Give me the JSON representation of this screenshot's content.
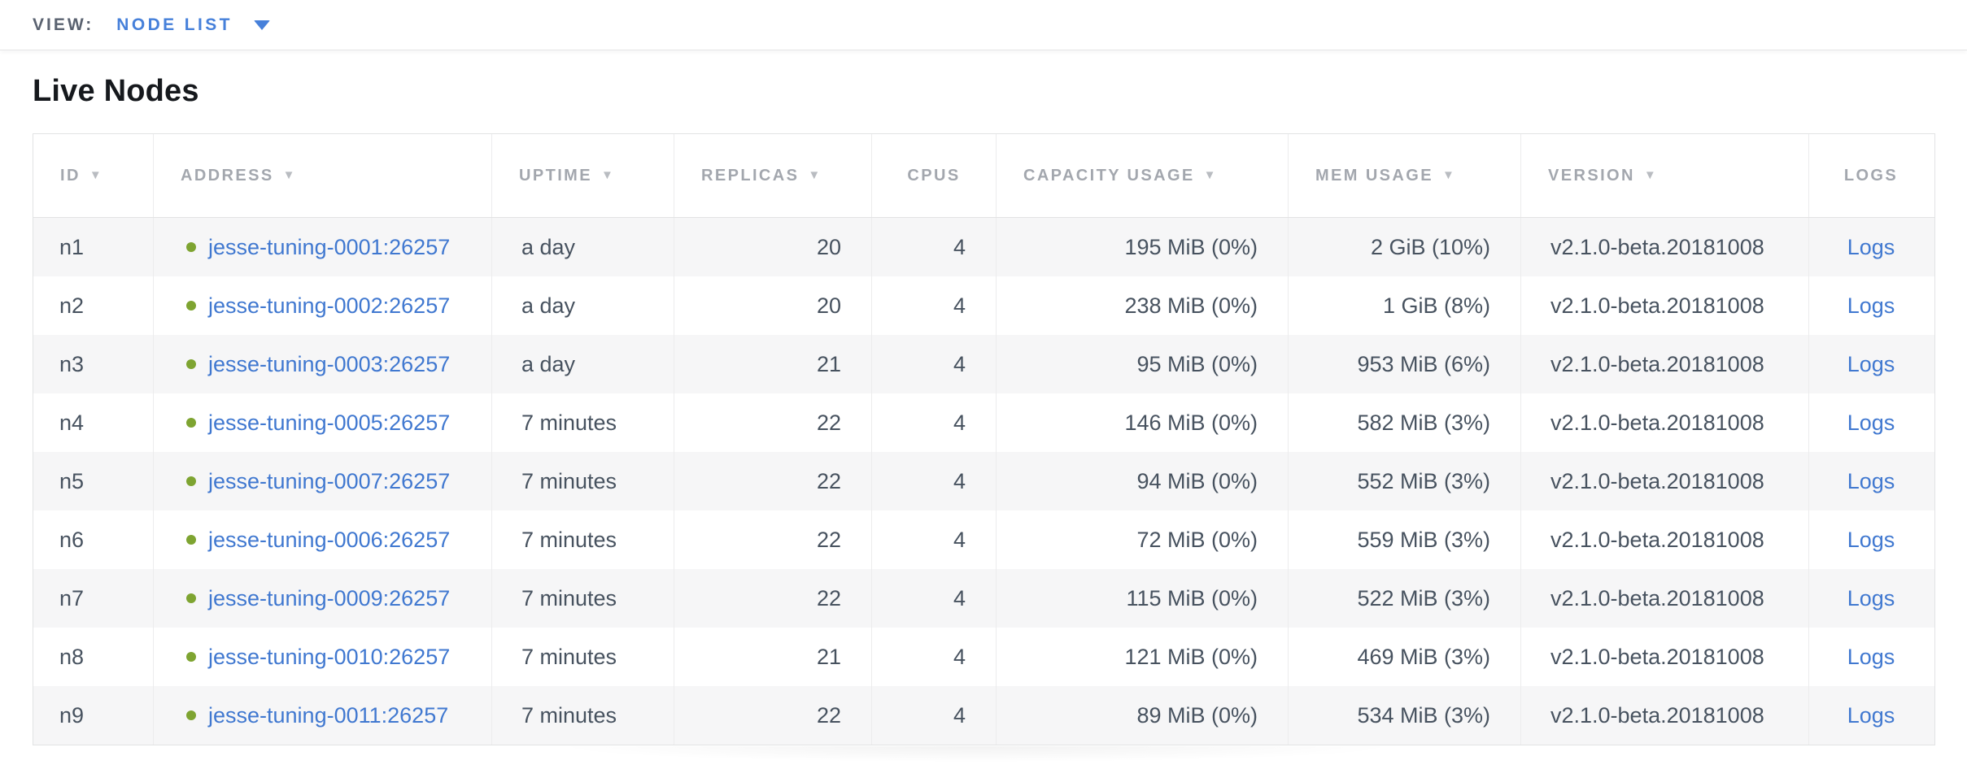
{
  "view_bar": {
    "label": "VIEW:",
    "selected": "NODE LIST"
  },
  "page": {
    "title": "Live Nodes"
  },
  "icons": {
    "sort_arrow": "▼",
    "live_status_color": "#7ea431"
  },
  "colors": {
    "link_blue": "#4078d0",
    "dropdown_blue": "#4680da",
    "live_green": "#7ea431",
    "header_gray": "#a3a7ae",
    "cell_text": "#47525f",
    "stripe": "#f6f6f7"
  },
  "table": {
    "columns": [
      {
        "label": "ID",
        "sortable": true
      },
      {
        "label": "ADDRESS",
        "sortable": true
      },
      {
        "label": "UPTIME",
        "sortable": true
      },
      {
        "label": "REPLICAS",
        "sortable": true
      },
      {
        "label": "CPUS",
        "sortable": false
      },
      {
        "label": "CAPACITY USAGE",
        "sortable": true
      },
      {
        "label": "MEM USAGE",
        "sortable": true
      },
      {
        "label": "VERSION",
        "sortable": true
      },
      {
        "label": "LOGS",
        "sortable": false
      }
    ],
    "rows": [
      {
        "id": "n1",
        "address": "jesse-tuning-0001:26257",
        "uptime": "a day",
        "replicas": "20",
        "cpus": "4",
        "capacity": "195 MiB (0%)",
        "mem": "2 GiB (10%)",
        "version": "v2.1.0-beta.20181008",
        "logs": "Logs"
      },
      {
        "id": "n2",
        "address": "jesse-tuning-0002:26257",
        "uptime": "a day",
        "replicas": "20",
        "cpus": "4",
        "capacity": "238 MiB (0%)",
        "mem": "1 GiB (8%)",
        "version": "v2.1.0-beta.20181008",
        "logs": "Logs"
      },
      {
        "id": "n3",
        "address": "jesse-tuning-0003:26257",
        "uptime": "a day",
        "replicas": "21",
        "cpus": "4",
        "capacity": "95 MiB (0%)",
        "mem": "953 MiB (6%)",
        "version": "v2.1.0-beta.20181008",
        "logs": "Logs"
      },
      {
        "id": "n4",
        "address": "jesse-tuning-0005:26257",
        "uptime": "7 minutes",
        "replicas": "22",
        "cpus": "4",
        "capacity": "146 MiB (0%)",
        "mem": "582 MiB (3%)",
        "version": "v2.1.0-beta.20181008",
        "logs": "Logs"
      },
      {
        "id": "n5",
        "address": "jesse-tuning-0007:26257",
        "uptime": "7 minutes",
        "replicas": "22",
        "cpus": "4",
        "capacity": "94 MiB (0%)",
        "mem": "552 MiB (3%)",
        "version": "v2.1.0-beta.20181008",
        "logs": "Logs"
      },
      {
        "id": "n6",
        "address": "jesse-tuning-0006:26257",
        "uptime": "7 minutes",
        "replicas": "22",
        "cpus": "4",
        "capacity": "72 MiB (0%)",
        "mem": "559 MiB (3%)",
        "version": "v2.1.0-beta.20181008",
        "logs": "Logs"
      },
      {
        "id": "n7",
        "address": "jesse-tuning-0009:26257",
        "uptime": "7 minutes",
        "replicas": "22",
        "cpus": "4",
        "capacity": "115 MiB (0%)",
        "mem": "522 MiB (3%)",
        "version": "v2.1.0-beta.20181008",
        "logs": "Logs"
      },
      {
        "id": "n8",
        "address": "jesse-tuning-0010:26257",
        "uptime": "7 minutes",
        "replicas": "21",
        "cpus": "4",
        "capacity": "121 MiB (0%)",
        "mem": "469 MiB (3%)",
        "version": "v2.1.0-beta.20181008",
        "logs": "Logs"
      },
      {
        "id": "n9",
        "address": "jesse-tuning-0011:26257",
        "uptime": "7 minutes",
        "replicas": "22",
        "cpus": "4",
        "capacity": "89 MiB (0%)",
        "mem": "534 MiB (3%)",
        "version": "v2.1.0-beta.20181008",
        "logs": "Logs"
      }
    ]
  }
}
